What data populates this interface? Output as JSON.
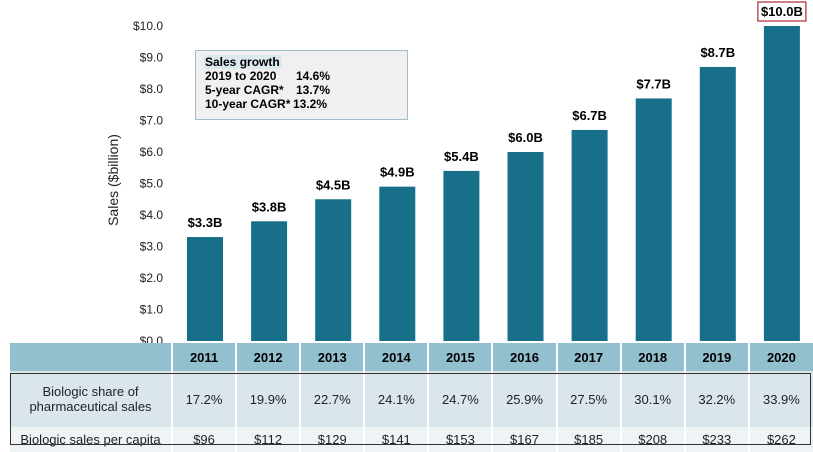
{
  "chart_data": {
    "type": "bar",
    "title": "",
    "xlabel": "",
    "ylabel": "Sales ($billion)",
    "ylim": [
      0,
      10
    ],
    "yticks": [
      "$0.0",
      "$1.0",
      "$2.0",
      "$3.0",
      "$4.0",
      "$5.0",
      "$6.0",
      "$7.0",
      "$8.0",
      "$9.0",
      "$10.0"
    ],
    "ytick_values": [
      0,
      1,
      2,
      3,
      4,
      5,
      6,
      7,
      8,
      9,
      10
    ],
    "categories": [
      "2011",
      "2012",
      "2013",
      "2014",
      "2015",
      "2016",
      "2017",
      "2018",
      "2019",
      "2020"
    ],
    "values": [
      3.3,
      3.8,
      4.5,
      4.9,
      5.4,
      6.0,
      6.7,
      7.7,
      8.7,
      10.0
    ],
    "data_labels": [
      "$3.3B",
      "$3.8B",
      "$4.5B",
      "$4.9B",
      "$5.4B",
      "$6.0B",
      "$6.7B",
      "$7.7B",
      "$8.7B",
      "$10.0B"
    ],
    "highlighted_label_index": 9,
    "bar_color": "#186f8a",
    "highlight_border_color": "#b0292e",
    "grid": false,
    "legend": "none"
  },
  "growth_box": {
    "title": "Sales growth",
    "rows": [
      {
        "label": "2019 to 2020",
        "value": "14.6%"
      },
      {
        "label": "5-year CAGR*",
        "value": "13.7%"
      },
      {
        "label": "10-year CAGR*",
        "value": "13.2%"
      }
    ]
  },
  "table": {
    "years": [
      "2011",
      "2012",
      "2013",
      "2014",
      "2015",
      "2016",
      "2017",
      "2018",
      "2019",
      "2020"
    ],
    "rows": [
      {
        "label_line1": "Biologic share of",
        "label_line2": "pharmaceutical sales",
        "values": [
          "17.2%",
          "19.9%",
          "22.7%",
          "24.1%",
          "24.7%",
          "25.9%",
          "27.5%",
          "30.1%",
          "32.2%",
          "33.9%"
        ]
      },
      {
        "label": "Biologic sales per capita",
        "values": [
          "$96",
          "$112",
          "$129",
          "$141",
          "$153",
          "$167",
          "$185",
          "$208",
          "$233",
          "$262"
        ]
      }
    ]
  }
}
